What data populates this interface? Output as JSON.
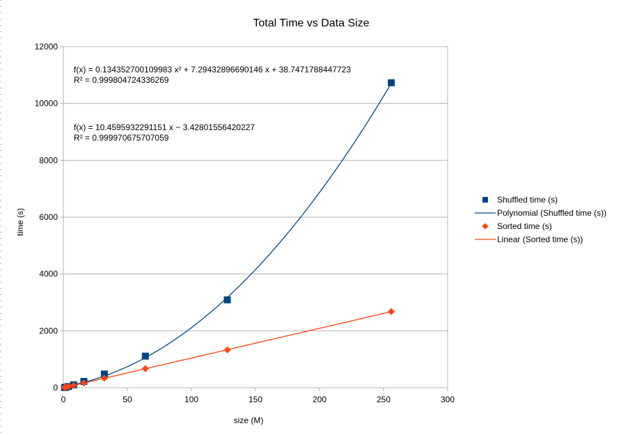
{
  "chart_data": {
    "type": "scatter",
    "title": "Total Time vs Data Size",
    "xlabel": "size (M)",
    "ylabel": "time (s)",
    "xlim": [
      0,
      300
    ],
    "ylim": [
      0,
      12000
    ],
    "x_ticks": [
      0,
      50,
      100,
      150,
      200,
      250,
      300
    ],
    "y_ticks": [
      0,
      2000,
      4000,
      6000,
      8000,
      10000,
      12000
    ],
    "x_tick_labels": [
      "0",
      "50",
      "100",
      "150",
      "200",
      "250",
      "300"
    ],
    "y_tick_labels": [
      "0",
      "2000",
      "4000",
      "6000",
      "8000",
      "10000",
      "12000"
    ],
    "grid": "horizontal",
    "legend_position": "right",
    "series": [
      {
        "name": "Shuffled time (s)",
        "marker": "square",
        "color": "#004586",
        "x": [
          1,
          2,
          4,
          8,
          16,
          32,
          64,
          128,
          256
        ],
        "y": [
          5,
          15,
          40,
          100,
          220,
          480,
          1110,
          3090,
          10730
        ]
      },
      {
        "name": "Sorted time (s)",
        "marker": "diamond",
        "color": "#ff420e",
        "x": [
          1,
          2,
          4,
          8,
          16,
          32,
          64,
          128,
          256
        ],
        "y": [
          7,
          17,
          38,
          80,
          165,
          335,
          670,
          1330,
          2680
        ]
      }
    ],
    "trendlines": [
      {
        "name": "Polynomial (Shuffled time (s))",
        "kind": "polynomial",
        "color": "#004586",
        "coefficients": [
          38.7471788447723,
          7.29432896690146,
          0.134352700109983
        ],
        "equation": "f(x) = 0.134352700109983 x² + 7.29432896690146 x + 38.7471788447723",
        "r2": "R² = 0.999804724336269"
      },
      {
        "name": "Linear (Sorted time (s))",
        "kind": "linear",
        "color": "#ff420e",
        "coefficients": [
          -3.42801556420227,
          10.4595932291151
        ],
        "equation": "f(x) = 10.4595932291151 x − 3.42801556420227",
        "r2": "R² = 0.999970675707059"
      }
    ],
    "legend": [
      {
        "label": "Shuffled time (s)",
        "symbol": "square",
        "color": "#004586"
      },
      {
        "label": "Polynomial (Shuffled time (s))",
        "symbol": "line",
        "color": "#004586"
      },
      {
        "label": "Sorted time (s)",
        "symbol": "diamond",
        "color": "#ff420e"
      },
      {
        "label": "Linear (Sorted time (s))",
        "symbol": "line",
        "color": "#ff420e"
      }
    ]
  }
}
